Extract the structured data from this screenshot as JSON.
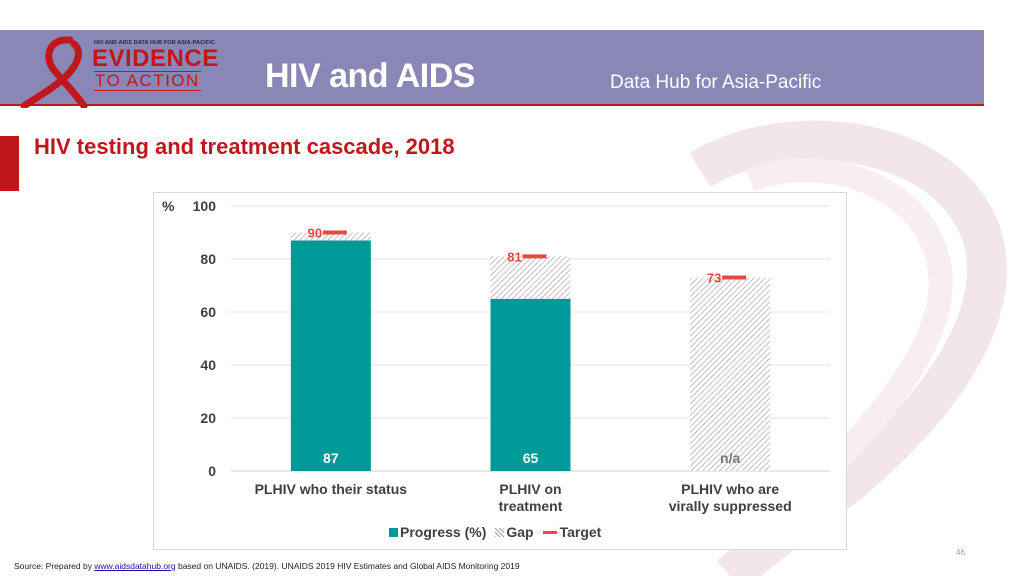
{
  "header": {
    "logo_top": "HIV AND AIDS DATA HUB FOR ASIA-PACIFIC",
    "logo_evidence": "EVIDENCE",
    "logo_action": "TO ACTION",
    "title": "HIV and AIDS",
    "subtitle": "Data Hub for Asia-Pacific"
  },
  "slide": {
    "title": "HIV testing and treatment cascade, 2018",
    "page_number": "46"
  },
  "source": {
    "prefix": "Source: Prepared by ",
    "link": "www.aidsdatahub.org",
    "suffix": " based on UNAIDS. (2019). UNAIDS 2019 HIV Estimates and Global AIDS Monitoring 2019"
  },
  "colors": {
    "header_band": "#8a86b6",
    "brand_red": "#c0171d",
    "progress": "#009999",
    "target": "#ef4444"
  },
  "legend": {
    "progress": "Progress (%)",
    "gap": "Gap",
    "target": "Target"
  },
  "chart_data": {
    "type": "bar",
    "ylabel": "%",
    "ylim": [
      0,
      100
    ],
    "yticks": [
      0,
      20,
      40,
      60,
      80,
      100
    ],
    "grid": true,
    "legend_position": "bottom",
    "categories": [
      [
        "PLHIV who their status"
      ],
      [
        "PLHIV on",
        "treatment"
      ],
      [
        "PLHIV who are",
        "virally suppressed"
      ]
    ],
    "series": [
      {
        "name": "Progress (%)",
        "values": [
          87,
          65,
          null
        ],
        "labels": [
          "87",
          "65",
          "n/a"
        ]
      },
      {
        "name": "Gap",
        "values": [
          3,
          16,
          73
        ]
      },
      {
        "name": "Target",
        "values": [
          90,
          81,
          73
        ],
        "labels": [
          "90",
          "81",
          "73"
        ]
      }
    ]
  }
}
